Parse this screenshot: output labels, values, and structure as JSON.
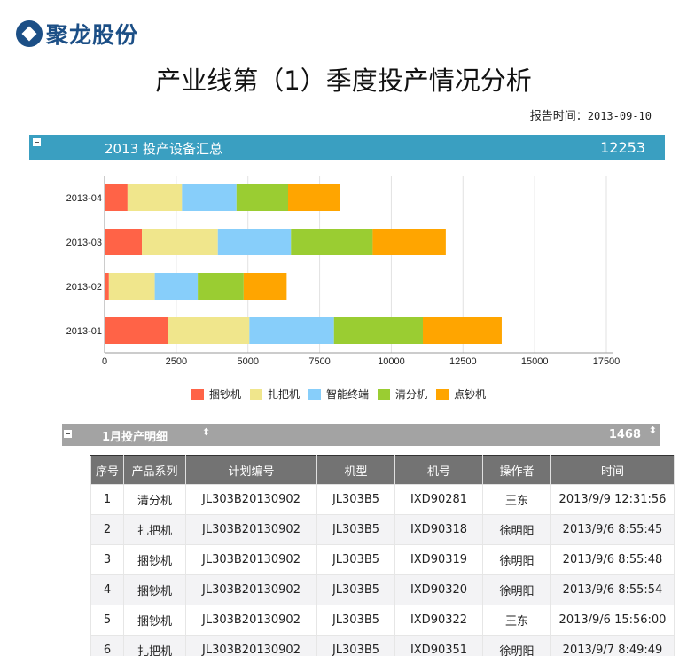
{
  "logo": {
    "text": "聚龙股份"
  },
  "title": "产业线第（1）季度投产情况分析",
  "report_time": {
    "label": "报告时间：",
    "value": "2013-09-10"
  },
  "summary": {
    "label": "2013 投产设备汇总",
    "total": "12253"
  },
  "chart_data": {
    "type": "bar",
    "orientation": "horizontal",
    "stacked": true,
    "categories": [
      "2013-01",
      "2013-02",
      "2013-03",
      "2013-04"
    ],
    "series": [
      {
        "name": "捆钞机",
        "color": "#ff6347",
        "values": [
          2200,
          150,
          1300,
          800
        ]
      },
      {
        "name": "扎把机",
        "color": "#f0e68c",
        "values": [
          2850,
          1600,
          2650,
          1900
        ]
      },
      {
        "name": "智能终端",
        "color": "#87cefa",
        "values": [
          2950,
          1500,
          2550,
          1900
        ]
      },
      {
        "name": "清分机",
        "color": "#9acd32",
        "values": [
          3100,
          1600,
          2850,
          1800
        ]
      },
      {
        "name": "点钞机",
        "color": "#ffa500",
        "values": [
          2750,
          1500,
          2550,
          1800
        ]
      }
    ],
    "xlim": [
      0,
      17500
    ],
    "xticks": [
      0,
      2500,
      5000,
      7500,
      10000,
      12500,
      15000,
      17500
    ],
    "grid": true,
    "legend": "bottom"
  },
  "detail": {
    "label": "1月投产明细",
    "total": "1468",
    "sort_icon": "sort-arrows-icon"
  },
  "table": {
    "headers": [
      "序号",
      "产品系列",
      "计划编号",
      "机型",
      "机号",
      "操作者",
      "时间"
    ],
    "rows": [
      [
        "1",
        "清分机",
        "JL303B20130902",
        "JL303B5",
        "IXD90281",
        "王东",
        "2013/9/9 12:31:56"
      ],
      [
        "2",
        "扎把机",
        "JL303B20130902",
        "JL303B5",
        "IXD90318",
        "徐明阳",
        "2013/9/6 8:55:45"
      ],
      [
        "3",
        "捆钞机",
        "JL303B20130902",
        "JL303B5",
        "IXD90319",
        "徐明阳",
        "2013/9/6 8:55:48"
      ],
      [
        "4",
        "捆钞机",
        "JL303B20130902",
        "JL303B5",
        "IXD90320",
        "徐明阳",
        "2013/9/6 8:55:54"
      ],
      [
        "5",
        "捆钞机",
        "JL303B20130902",
        "JL303B5",
        "IXD90322",
        "王东",
        "2013/9/6 15:56:00"
      ],
      [
        "6",
        "扎把机",
        "JL303B20130902",
        "JL303B5",
        "IXD90351",
        "徐明阳",
        "2013/9/7 8:49:49"
      ]
    ]
  }
}
